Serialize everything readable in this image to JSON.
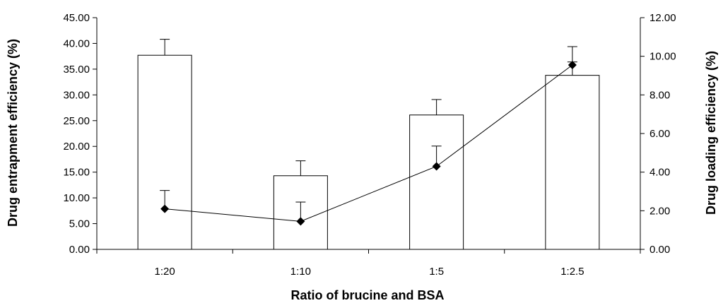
{
  "chart_data": {
    "type": "bar",
    "xlabel": "Ratio of brucine and BSA",
    "ylabel": "Drug entrapment efficiency (%)",
    "y2label": "Drug loading efficiency (%)",
    "categories": [
      "1:20",
      "1:10",
      "1:5",
      "1:2.5"
    ],
    "ylim": [
      0,
      45
    ],
    "y2lim": [
      0,
      12
    ],
    "yticks": [
      "0.00",
      "5.00",
      "10.00",
      "15.00",
      "20.00",
      "25.00",
      "30.00",
      "35.00",
      "40.00",
      "45.00"
    ],
    "y2ticks": [
      "0.00",
      "2.00",
      "4.00",
      "6.00",
      "8.00",
      "10.00",
      "12.00"
    ],
    "series": [
      {
        "type": "bar",
        "axis": "left",
        "values": [
          37.7,
          14.3,
          26.1,
          33.8
        ],
        "errors": [
          3.1,
          2.9,
          3.0,
          2.6
        ],
        "fill": "#ffffff",
        "stroke": "#000000"
      },
      {
        "type": "line",
        "axis": "right",
        "marker": "diamond",
        "values": [
          2.1,
          1.45,
          4.3,
          9.55
        ],
        "errors": [
          0.95,
          1.0,
          1.05,
          0.95
        ],
        "color": "#000000"
      }
    ]
  }
}
